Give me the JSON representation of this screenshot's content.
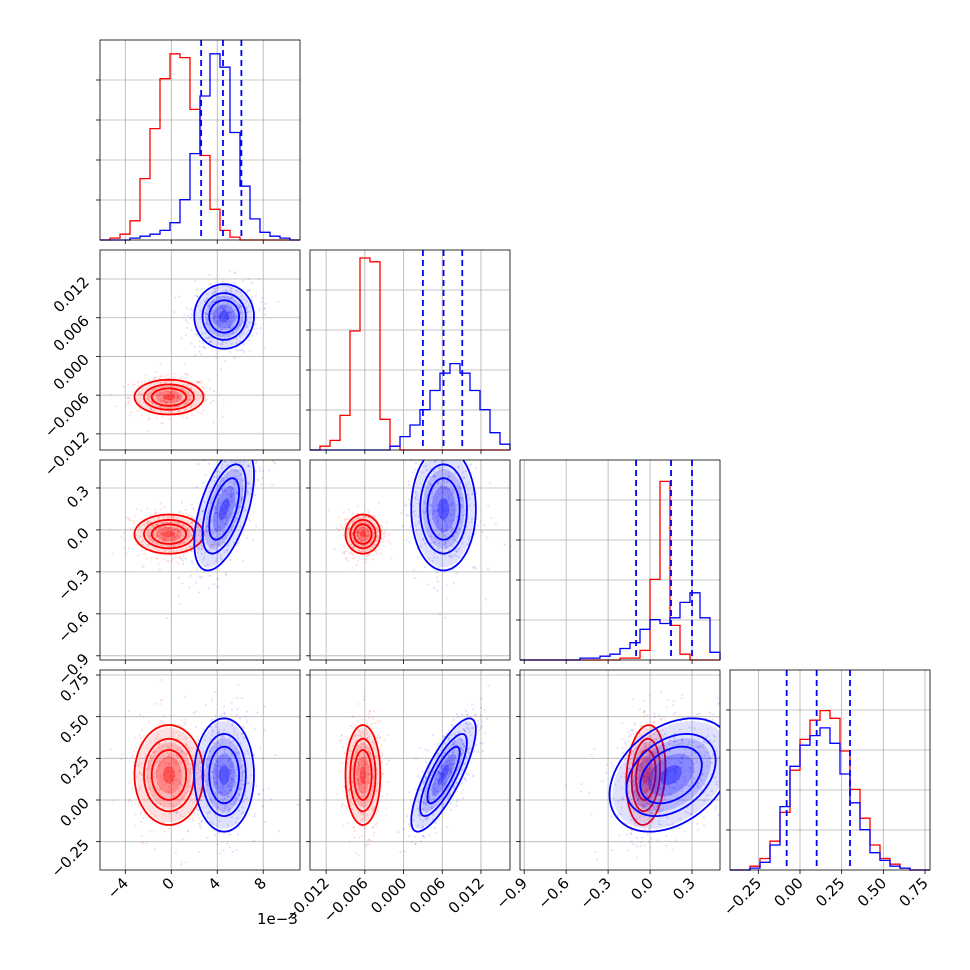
{
  "colors": {
    "red": "#ff0000",
    "blue": "#0000ff",
    "grid": "#b0b0b0",
    "axis": "#000000",
    "background": "#ffffff"
  },
  "offset_text": "1e−3",
  "chart_data": {
    "type": "corner",
    "grid": true,
    "parameters": [
      {
        "range": [
          -6.2,
          11.2
        ],
        "ticks": [
          -4,
          0,
          4,
          8
        ],
        "tick_labels": [
          "−4",
          "0",
          "4",
          "8"
        ]
      },
      {
        "range": [
          -0.0145,
          0.0165
        ],
        "ticks": [
          -0.012,
          -0.006,
          0.0,
          0.006,
          0.012
        ],
        "tick_labels": [
          "−0.012",
          "−0.006",
          "0.000",
          "0.006",
          "0.012"
        ]
      },
      {
        "range": [
          -0.93,
          0.5
        ],
        "ticks": [
          -0.9,
          -0.6,
          -0.3,
          0.0,
          0.3
        ],
        "tick_labels": [
          "−0.9",
          "−0.6",
          "−0.3",
          "0.0",
          "0.3"
        ]
      },
      {
        "range": [
          -0.42,
          0.78
        ],
        "ticks": [
          -0.25,
          0.0,
          0.25,
          0.5,
          0.75
        ],
        "tick_labels": [
          "−0.25",
          "0.00",
          "0.25",
          "0.50",
          "0.75"
        ]
      }
    ],
    "quantile_lines": [
      [
        2.6,
        4.5,
        6.1
      ],
      [
        0.003,
        0.0062,
        0.0091
      ],
      [
        -0.1,
        0.15,
        0.3
      ],
      [
        -0.08,
        0.1,
        0.3
      ]
    ],
    "series": [
      {
        "color": "red",
        "mean": [
          -0.2,
          -0.0063,
          -0.03,
          0.15
        ],
        "std": [
          1.5,
          0.00135,
          0.07,
          0.15
        ],
        "corr": {
          "0-1": 0.0,
          "0-2": 0.0,
          "0-3": 0.0,
          "1-2": 0.0,
          "1-3": 0.0,
          "2-3": 0.15
        },
        "histograms": [
          [
            0.0,
            0.01,
            0.03,
            0.1,
            0.32,
            0.58,
            0.84,
            0.97,
            0.95,
            0.68,
            0.44,
            0.16,
            0.05,
            0.015,
            0.0,
            0.0,
            0.0,
            0.0,
            0.0,
            0.0
          ],
          [
            0.0,
            0.02,
            0.05,
            0.18,
            0.62,
            1.0,
            0.98,
            0.16,
            0.02,
            0.0,
            0.0,
            0.0,
            0.0,
            0.0,
            0.0,
            0.0,
            0.0,
            0.0,
            0.0,
            0.0
          ],
          [
            0.0,
            0.0,
            0.0,
            0.0,
            0.0,
            0.0,
            0.0,
            0.0,
            0.0,
            0.0,
            0.01,
            0.01,
            0.05,
            0.42,
            0.93,
            0.18,
            0.03,
            0.0,
            0.0,
            0.0
          ],
          [
            0.0,
            0.0,
            0.02,
            0.06,
            0.15,
            0.3,
            0.52,
            0.68,
            0.78,
            0.83,
            0.79,
            0.62,
            0.42,
            0.27,
            0.13,
            0.06,
            0.03,
            0.01,
            0.0,
            0.0
          ]
        ]
      },
      {
        "color": "blue",
        "mean": [
          4.6,
          0.0062,
          0.15,
          0.15
        ],
        "std": [
          1.3,
          0.0025,
          0.22,
          0.17
        ],
        "corr": {
          "0-1": 0.0,
          "0-2": 0.55,
          "0-3": 0.0,
          "1-2": 0.0,
          "1-3": 0.8,
          "2-3": 0.35
        },
        "histograms": [
          [
            0.0,
            0.0,
            0.0,
            0.01,
            0.02,
            0.03,
            0.05,
            0.09,
            0.21,
            0.45,
            0.75,
            0.97,
            0.9,
            0.56,
            0.28,
            0.11,
            0.04,
            0.02,
            0.01,
            0.0
          ],
          [
            0.0,
            0.0,
            0.0,
            0.0,
            0.0,
            0.0,
            0.0,
            0.0,
            0.02,
            0.07,
            0.13,
            0.21,
            0.31,
            0.4,
            0.45,
            0.4,
            0.31,
            0.21,
            0.09,
            0.03
          ],
          [
            0.0,
            0.0,
            0.0,
            0.0,
            0.0,
            0.0,
            0.01,
            0.01,
            0.02,
            0.03,
            0.06,
            0.09,
            0.16,
            0.21,
            0.19,
            0.22,
            0.3,
            0.35,
            0.22,
            0.04
          ],
          [
            0.0,
            0.0,
            0.01,
            0.04,
            0.13,
            0.33,
            0.54,
            0.65,
            0.7,
            0.74,
            0.66,
            0.5,
            0.35,
            0.21,
            0.09,
            0.05,
            0.02,
            0.01,
            0.0,
            0.0
          ]
        ]
      }
    ]
  }
}
